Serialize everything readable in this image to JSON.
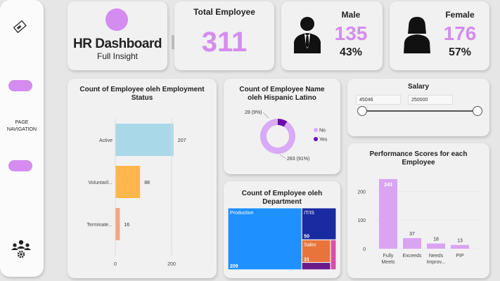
{
  "sidebar": {
    "nav_label_line1": "PAGE",
    "nav_label_line2": "NAVIGATION"
  },
  "header": {
    "title": "HR Dashboard",
    "subtitle": "Full Insight"
  },
  "kpis": {
    "total": {
      "label": "Total Employee",
      "value": "311"
    },
    "male": {
      "label": "Male",
      "value": "135",
      "percent": "43%"
    },
    "female": {
      "label": "Female",
      "value": "176",
      "percent": "57%"
    }
  },
  "salary": {
    "title": "Salary",
    "min": "45046",
    "max": "250000"
  },
  "colors": {
    "accent": "#d48cf0",
    "active": "#a9d8e8",
    "voluntary": "#ffb74d",
    "terminated": "#f4a582",
    "donut_no": "#d9aaf5",
    "donut_yes": "#6a0dad",
    "perf_bar": "#d9a4f2"
  },
  "chart_data": [
    {
      "type": "bar",
      "orientation": "horizontal",
      "title": "Count of Employee oleh Employment Status",
      "categories": [
        "Active",
        "Voluntaril...",
        "Terminate..."
      ],
      "values": [
        207,
        88,
        16
      ],
      "xlim": [
        0,
        200
      ],
      "x_ticks": [
        "0",
        "200"
      ]
    },
    {
      "type": "pie",
      "title": "Count of Employee Name oleh Hispanic Latino",
      "slices": [
        {
          "name": "No",
          "value": 283,
          "label": "283 (91%)"
        },
        {
          "name": "Yes",
          "value": 28,
          "label": "28 (9%)"
        }
      ],
      "legend": [
        "No",
        "Yes"
      ]
    },
    {
      "type": "treemap",
      "title": "Count of Employee oleh Department",
      "items": [
        {
          "name": "Production",
          "value": 209,
          "value_label": "209",
          "color": "#1e90ff"
        },
        {
          "name": "IT/IS",
          "value": 50,
          "value_label": "50",
          "color": "#1a2aa0"
        },
        {
          "name": "Sales",
          "value": 31,
          "value_label": "31",
          "color": "#e8743b"
        },
        {
          "name": "",
          "value": 10,
          "value_label": "",
          "color": "#6b1a8a"
        },
        {
          "name": "",
          "value": 6,
          "value_label": "",
          "color": "#d64fa8"
        }
      ]
    },
    {
      "type": "bar",
      "title": "Performance Scores for each Employee",
      "categories": [
        "Fully Meets",
        "Exceeds",
        "Needs Improv...",
        "PIP"
      ],
      "values": [
        243,
        37,
        18,
        13
      ],
      "ylim": [
        0,
        250
      ],
      "y_ticks": [
        "0",
        "100",
        "200"
      ]
    }
  ]
}
